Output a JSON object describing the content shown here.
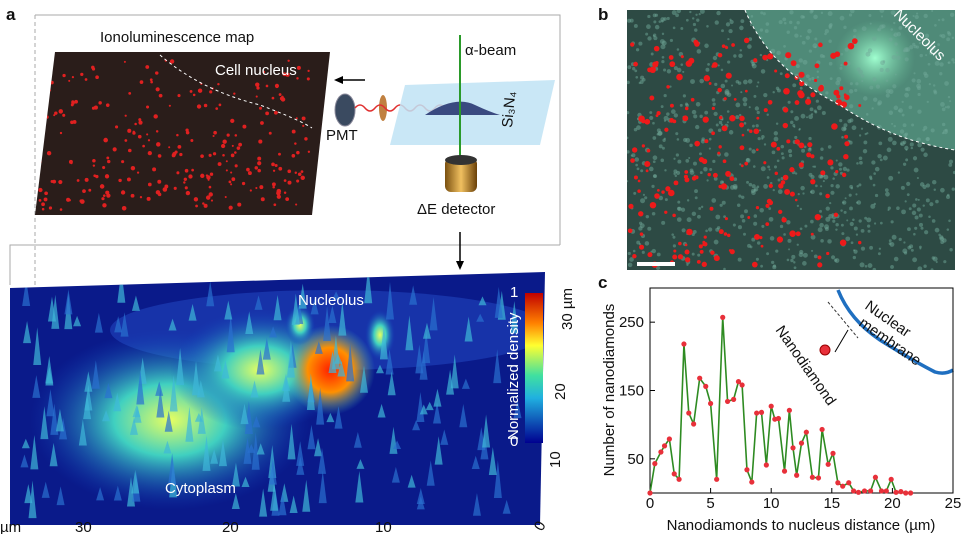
{
  "panel_a": {
    "label": "a",
    "map_title": "Ionoluminescence map",
    "cell_nucleus": "Cell nucleus",
    "pmt": "PMT",
    "beam": "α-beam",
    "substrate": "Si₃N₄",
    "detector": "ΔE detector",
    "nucleolus": "Nucleolus",
    "cytoplasm": "Cytoplasm",
    "colorbar_title": "Normalized density",
    "colorbar_ticks": [
      "0",
      "1"
    ],
    "x_axis_ticks": [
      "30",
      "20",
      "10",
      "0"
    ],
    "x_unit": "µm",
    "y_axis_ticks": [
      "10",
      "20",
      "30 µm"
    ]
  },
  "panel_b": {
    "label": "b",
    "nucleolus": "Nucleolus"
  },
  "chart_data": {
    "type": "line",
    "panel_label": "c",
    "x_label": "Nanodiamonds to nucleus distance (µm)",
    "y_label": "Number of nanodiamonds",
    "annotations": [
      "Nuclear",
      "membrane",
      "Nanodiamond"
    ],
    "x": [
      0,
      0.4,
      0.9,
      1.2,
      1.6,
      2.0,
      2.4,
      2.8,
      3.2,
      3.6,
      4.1,
      4.6,
      5.0,
      5.5,
      6.0,
      6.4,
      6.9,
      7.3,
      7.6,
      8.0,
      8.4,
      8.8,
      9.2,
      9.6,
      10.0,
      10.3,
      10.6,
      11.1,
      11.5,
      11.8,
      12.1,
      12.5,
      12.9,
      13.4,
      13.9,
      14.2,
      14.7,
      15.1,
      15.5,
      15.9,
      16.4,
      16.8,
      17.2,
      17.7,
      18.2,
      18.6,
      19.1,
      19.5,
      19.9,
      20.3,
      20.7,
      21.1,
      21.5
    ],
    "values": [
      0,
      43,
      60,
      69,
      79,
      28,
      20,
      218,
      117,
      101,
      168,
      156,
      131,
      20,
      257,
      134,
      137,
      163,
      158,
      34,
      16,
      117,
      118,
      41,
      127,
      108,
      109,
      32,
      121,
      66,
      26,
      73,
      89,
      23,
      22,
      93,
      42,
      58,
      15,
      10,
      15,
      3,
      1,
      3,
      3,
      23,
      3,
      3,
      20,
      1,
      2,
      0,
      0
    ],
    "color": "#2e8b22",
    "marker_color": "#e8303a",
    "xlim": [
      0,
      25
    ],
    "xticks": [
      0,
      5,
      10,
      15,
      20,
      25
    ],
    "ylim": [
      0,
      300
    ],
    "yticks": [
      50,
      150,
      250
    ]
  }
}
